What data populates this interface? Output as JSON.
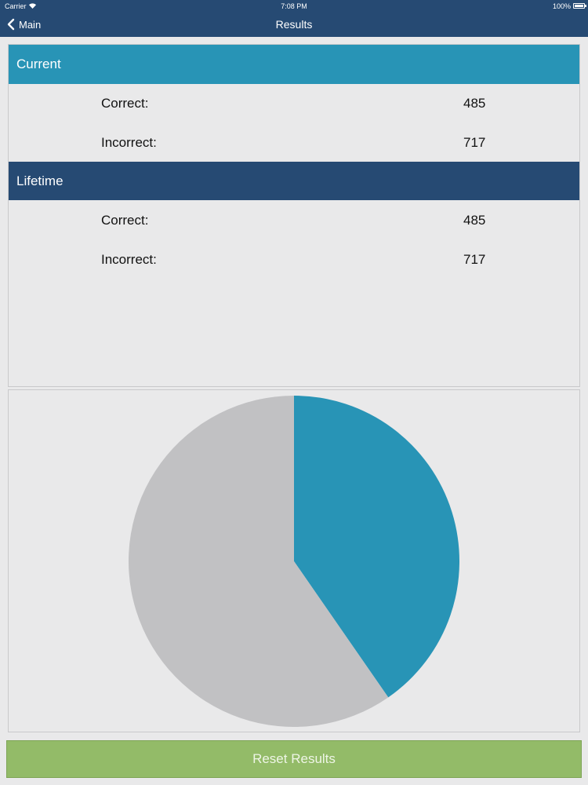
{
  "status": {
    "carrier": "Carrier",
    "time": "7:08 PM",
    "battery": "100%"
  },
  "nav": {
    "back_label": "Main",
    "title": "Results"
  },
  "current": {
    "title": "Current",
    "rows": [
      {
        "label": "Correct:",
        "value": "485"
      },
      {
        "label": "Incorrect:",
        "value": "717"
      }
    ]
  },
  "lifetime": {
    "title": "Lifetime",
    "rows": [
      {
        "label": "Correct:",
        "value": "485"
      },
      {
        "label": "Incorrect:",
        "value": "717"
      }
    ]
  },
  "chart_data": {
    "type": "pie",
    "categories": [
      "Correct",
      "Incorrect"
    ],
    "values": [
      485,
      717
    ],
    "colors": [
      "#2894b6",
      "#c1c1c3"
    ]
  },
  "reset_label": "Reset Results",
  "colors": {
    "header_dark": "#264a73",
    "header_accent": "#2894b6",
    "reset_green": "#93bb68"
  }
}
